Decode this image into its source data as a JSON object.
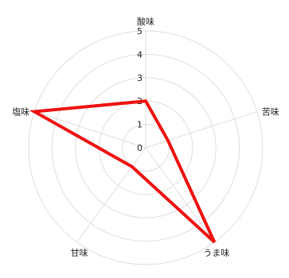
{
  "chart_data": {
    "type": "radar",
    "axes": [
      "酸味",
      "苦味",
      "うま味",
      "甘味",
      "塩味"
    ],
    "tick_labels": [
      "0",
      "1",
      "2",
      "3",
      "4",
      "5"
    ],
    "range": [
      0,
      5
    ],
    "grid": true,
    "series": [
      {
        "values": [
          2.0,
          1.0,
          5.0,
          1.0,
          5.0
        ],
        "color": "#ee1111"
      }
    ]
  }
}
